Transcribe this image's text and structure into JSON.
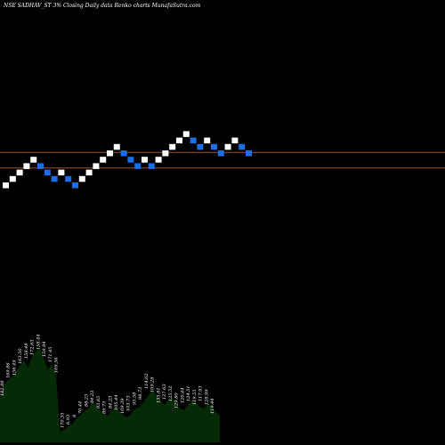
{
  "chart_data": {
    "type": "renko",
    "title": "NSE SADHAV_ST 3% Closing Daily data  Renko charts MunafaSutra.com",
    "colors": {
      "background": "#000000",
      "up_brick": "#ffffff",
      "down_brick": "#1a6fe8",
      "reference_line": "#a0522d",
      "volume_fill": "#062906",
      "label": "#ffffff"
    },
    "bricks": [
      {
        "level": 0,
        "direction": "up"
      },
      {
        "level": 1,
        "direction": "up"
      },
      {
        "level": 2,
        "direction": "up"
      },
      {
        "level": 3,
        "direction": "up"
      },
      {
        "level": 4,
        "direction": "up"
      },
      {
        "level": 3,
        "direction": "down"
      },
      {
        "level": 2,
        "direction": "down"
      },
      {
        "level": 1,
        "direction": "down"
      },
      {
        "level": 2,
        "direction": "up"
      },
      {
        "level": 1,
        "direction": "down"
      },
      {
        "level": 0,
        "direction": "down"
      },
      {
        "level": 1,
        "direction": "up"
      },
      {
        "level": 2,
        "direction": "up"
      },
      {
        "level": 3,
        "direction": "up"
      },
      {
        "level": 4,
        "direction": "up"
      },
      {
        "level": 5,
        "direction": "up"
      },
      {
        "level": 6,
        "direction": "up"
      },
      {
        "level": 5,
        "direction": "down"
      },
      {
        "level": 4,
        "direction": "down"
      },
      {
        "level": 3,
        "direction": "down"
      },
      {
        "level": 4,
        "direction": "up"
      },
      {
        "level": 3,
        "direction": "down"
      },
      {
        "level": 4,
        "direction": "up"
      },
      {
        "level": 5,
        "direction": "up"
      },
      {
        "level": 6,
        "direction": "up"
      },
      {
        "level": 7,
        "direction": "up"
      },
      {
        "level": 8,
        "direction": "up"
      },
      {
        "level": 7,
        "direction": "down"
      },
      {
        "level": 6,
        "direction": "down"
      },
      {
        "level": 7,
        "direction": "up"
      },
      {
        "level": 6,
        "direction": "down"
      },
      {
        "level": 5,
        "direction": "down"
      },
      {
        "level": 6,
        "direction": "up"
      },
      {
        "level": 7,
        "direction": "up"
      },
      {
        "level": 6,
        "direction": "down"
      },
      {
        "level": 5,
        "direction": "down"
      }
    ],
    "reference_levels": [
      5.15,
      2.7
    ],
    "volume_labels": [
      "182.88",
      "169.86",
      "156.49",
      "163.50",
      "158.48",
      "172.63",
      "158.44",
      "159.94",
      "171.45",
      "169.56",
      "170.35",
      "6.93",
      "8",
      "70.44",
      "88.23",
      "84.23",
      "93.65",
      "89.73",
      "84.23",
      "105.44",
      "109.39",
      "103.73",
      "95.58",
      "98.73",
      "114.62",
      "109.28",
      "135.81",
      "127.63",
      "125.52",
      "129.80",
      "120.44",
      "124.51",
      "119.55",
      "117.93",
      "128.99",
      "119.44"
    ],
    "volume_values": [
      50,
      64,
      70,
      73,
      80,
      86,
      92,
      84,
      96,
      102,
      106,
      94,
      82,
      88,
      76,
      12,
      14,
      18,
      20,
      26,
      30,
      34,
      38,
      44,
      42,
      36,
      32,
      30,
      36,
      40,
      34,
      30,
      28,
      33,
      38,
      40,
      46,
      52,
      58,
      54,
      48,
      42,
      46,
      50,
      44,
      38,
      36,
      42,
      48,
      44,
      40,
      38,
      44,
      40,
      34,
      30
    ]
  }
}
